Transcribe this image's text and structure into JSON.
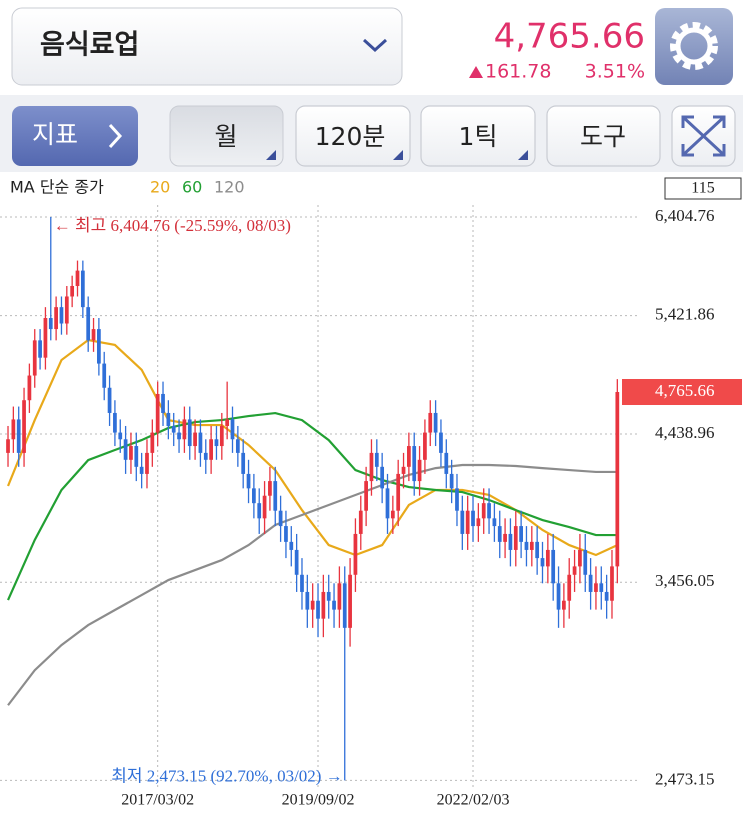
{
  "header": {
    "title": "음식료업",
    "price": "4,765.66",
    "change": "161.78",
    "change_rate": "3.51%"
  },
  "toolbar": {
    "indicator": "지표",
    "buttons": [
      "월",
      "120분",
      "1틱",
      "도구"
    ]
  },
  "chart_data": {
    "type": "candlestick",
    "legend_title": "MA 단순 종가",
    "count": 115,
    "log": true,
    "grid": true,
    "up_color": "#e8343f",
    "down_color": "#2f6fd8",
    "ylim": [
      2413,
      6760
    ],
    "yticks": [
      {
        "value": 6404.76,
        "label": "6,404.76"
      },
      {
        "value": 5421.86,
        "label": "5,421.86"
      },
      {
        "value": 4438.96,
        "label": "4,438.96"
      },
      {
        "value": 3456.05,
        "label": "3,456.05"
      },
      {
        "value": 2473.15,
        "label": "2,473.15"
      }
    ],
    "xlim": [
      -1.5,
      114.5
    ],
    "xticks": [
      {
        "value": 28,
        "label": "2017/03/02"
      },
      {
        "value": 58,
        "label": "2019/09/02"
      },
      {
        "value": 87,
        "label": "2022/02/03"
      }
    ],
    "high_label": "← 최고 6,404.76 (-25.59%, 08/03)",
    "low_label": "최저 2,473.15 (92.70%, 03/02) →",
    "candles": [
      [
        4300,
        4500,
        4200,
        4400
      ],
      [
        4400,
        4650,
        4300,
        4550
      ],
      [
        4550,
        4650,
        4200,
        4300
      ],
      [
        4300,
        4800,
        4200,
        4700
      ],
      [
        4700,
        5000,
        4600,
        4900
      ],
      [
        4900,
        5300,
        4800,
        5200
      ],
      [
        5200,
        5300,
        4950,
        5050
      ],
      [
        5050,
        5500,
        4950,
        5400
      ],
      [
        5400,
        6404.76,
        5200,
        5300
      ],
      [
        5300,
        5600,
        5200,
        5500
      ],
      [
        5500,
        5600,
        5250,
        5350
      ],
      [
        5350,
        5700,
        5250,
        5600
      ],
      [
        5600,
        5800,
        5500,
        5700
      ],
      [
        5700,
        5950,
        5600,
        5850
      ],
      [
        5850,
        5950,
        5400,
        5500
      ],
      [
        5500,
        5600,
        5100,
        5200
      ],
      [
        5200,
        5400,
        5100,
        5300
      ],
      [
        5300,
        5400,
        4900,
        5000
      ],
      [
        5000,
        5100,
        4700,
        4800
      ],
      [
        4800,
        4900,
        4500,
        4600
      ],
      [
        4600,
        4700,
        4350,
        4450
      ],
      [
        4450,
        4550,
        4300,
        4400
      ],
      [
        4400,
        4500,
        4150,
        4250
      ],
      [
        4250,
        4450,
        4150,
        4350
      ],
      [
        4350,
        4450,
        4100,
        4200
      ],
      [
        4200,
        4300,
        4050,
        4150
      ],
      [
        4150,
        4400,
        4050,
        4300
      ],
      [
        4300,
        4550,
        4200,
        4450
      ],
      [
        4450,
        4850,
        4350,
        4750
      ],
      [
        4750,
        4850,
        4500,
        4600
      ],
      [
        4600,
        4700,
        4400,
        4500
      ],
      [
        4500,
        4600,
        4350,
        4450
      ],
      [
        4450,
        4550,
        4300,
        4400
      ],
      [
        4400,
        4650,
        4300,
        4550
      ],
      [
        4550,
        4650,
        4250,
        4350
      ],
      [
        4350,
        4550,
        4250,
        4450
      ],
      [
        4450,
        4550,
        4200,
        4300
      ],
      [
        4300,
        4400,
        4150,
        4250
      ],
      [
        4250,
        4500,
        4150,
        4400
      ],
      [
        4400,
        4500,
        4250,
        4350
      ],
      [
        4350,
        4600,
        4250,
        4500
      ],
      [
        4500,
        4850,
        4400,
        4550
      ],
      [
        4550,
        4650,
        4300,
        4400
      ],
      [
        4400,
        4500,
        4200,
        4300
      ],
      [
        4300,
        4400,
        4050,
        4150
      ],
      [
        4150,
        4250,
        3950,
        4050
      ],
      [
        4050,
        4150,
        3850,
        3950
      ],
      [
        3950,
        4050,
        3750,
        3850
      ],
      [
        3850,
        4100,
        3750,
        4000
      ],
      [
        4000,
        4200,
        3900,
        4100
      ],
      [
        4100,
        4200,
        3800,
        3900
      ],
      [
        3900,
        4000,
        3700,
        3800
      ],
      [
        3800,
        3900,
        3600,
        3700
      ],
      [
        3700,
        3800,
        3550,
        3650
      ],
      [
        3650,
        3750,
        3400,
        3500
      ],
      [
        3500,
        3600,
        3300,
        3400
      ],
      [
        3400,
        3500,
        3200,
        3300
      ],
      [
        3300,
        3450,
        3200,
        3350
      ],
      [
        3350,
        3450,
        3150,
        3250
      ],
      [
        3250,
        3500,
        3150,
        3400
      ],
      [
        3400,
        3500,
        3250,
        3350
      ],
      [
        3350,
        3450,
        3200,
        3300
      ],
      [
        3300,
        3550,
        3200,
        3450
      ],
      [
        3450,
        3550,
        2473.15,
        3200
      ],
      [
        3200,
        3600,
        3100,
        3500
      ],
      [
        3500,
        3850,
        3400,
        3750
      ],
      [
        3750,
        4000,
        3650,
        3900
      ],
      [
        3900,
        4200,
        3800,
        4100
      ],
      [
        4100,
        4400,
        4000,
        4300
      ],
      [
        4300,
        4400,
        4100,
        4200
      ],
      [
        4200,
        4300,
        3950,
        4050
      ],
      [
        4050,
        4150,
        3750,
        3850
      ],
      [
        3850,
        4000,
        3750,
        3900
      ],
      [
        3900,
        4250,
        3800,
        4150
      ],
      [
        4150,
        4300,
        4050,
        4200
      ],
      [
        4200,
        4450,
        4100,
        4350
      ],
      [
        4350,
        4450,
        4000,
        4100
      ],
      [
        4100,
        4350,
        4000,
        4250
      ],
      [
        4250,
        4550,
        4150,
        4450
      ],
      [
        4450,
        4700,
        4350,
        4600
      ],
      [
        4600,
        4700,
        4350,
        4450
      ],
      [
        4450,
        4550,
        4200,
        4300
      ],
      [
        4300,
        4400,
        4050,
        4150
      ],
      [
        4150,
        4250,
        3950,
        4050
      ],
      [
        4050,
        4150,
        3800,
        3900
      ],
      [
        3900,
        4000,
        3650,
        3750
      ],
      [
        3750,
        4000,
        3650,
        3900
      ],
      [
        3900,
        4000,
        3700,
        3800
      ],
      [
        3800,
        3950,
        3700,
        3850
      ],
      [
        3850,
        4050,
        3750,
        3950
      ],
      [
        3950,
        4050,
        3750,
        3850
      ],
      [
        3850,
        3950,
        3700,
        3800
      ],
      [
        3800,
        3900,
        3600,
        3700
      ],
      [
        3700,
        3850,
        3600,
        3750
      ],
      [
        3750,
        3850,
        3550,
        3650
      ],
      [
        3650,
        3900,
        3550,
        3800
      ],
      [
        3800,
        3900,
        3600,
        3700
      ],
      [
        3700,
        3800,
        3550,
        3650
      ],
      [
        3650,
        3800,
        3550,
        3700
      ],
      [
        3700,
        3800,
        3500,
        3600
      ],
      [
        3600,
        3700,
        3450,
        3550
      ],
      [
        3550,
        3750,
        3450,
        3650
      ],
      [
        3650,
        3750,
        3350,
        3450
      ],
      [
        3450,
        3550,
        3200,
        3300
      ],
      [
        3300,
        3450,
        3200,
        3350
      ],
      [
        3350,
        3600,
        3250,
        3500
      ],
      [
        3500,
        3650,
        3400,
        3550
      ],
      [
        3550,
        3750,
        3450,
        3650
      ],
      [
        3650,
        3750,
        3400,
        3500
      ],
      [
        3500,
        3600,
        3300,
        3400
      ],
      [
        3400,
        3550,
        3300,
        3450
      ],
      [
        3450,
        3550,
        3300,
        3400
      ],
      [
        3400,
        3500,
        3250,
        3350
      ],
      [
        3350,
        3650,
        3250,
        3550
      ],
      [
        3550,
        4870,
        3450,
        4765.66
      ]
    ],
    "x": [
      0,
      5,
      10,
      15,
      20,
      25,
      30,
      35,
      40,
      45,
      50,
      55,
      60,
      65,
      70,
      75,
      80,
      85,
      90,
      95,
      100,
      105,
      110,
      114
    ],
    "series": [
      {
        "name": "20",
        "color": "#e8a91a",
        "values": [
          4066,
          4545,
          5030,
          5203,
          5160,
          4948,
          4545,
          4507,
          4507,
          4358,
          4177,
          3904,
          3680,
          3619,
          3680,
          3938,
          4039,
          4039,
          4005,
          3904,
          3775,
          3680,
          3619,
          3680
        ]
      },
      {
        "name": "60",
        "color": "#22a033",
        "values": [
          3354,
          3712,
          4039,
          4248,
          4321,
          4394,
          4485,
          4530,
          4545,
          4576,
          4599,
          4545,
          4394,
          4177,
          4107,
          4059,
          4039,
          4025,
          3971,
          3904,
          3839,
          3794,
          3743,
          3743
        ]
      },
      {
        "name": "120",
        "color": "#8c8c8c",
        "values": [
          2808,
          2979,
          3108,
          3215,
          3298,
          3382,
          3469,
          3528,
          3588,
          3680,
          3807,
          3872,
          3938,
          4005,
          4073,
          4143,
          4191,
          4213,
          4213,
          4206,
          4191,
          4177,
          4164,
          4164
        ]
      }
    ]
  }
}
